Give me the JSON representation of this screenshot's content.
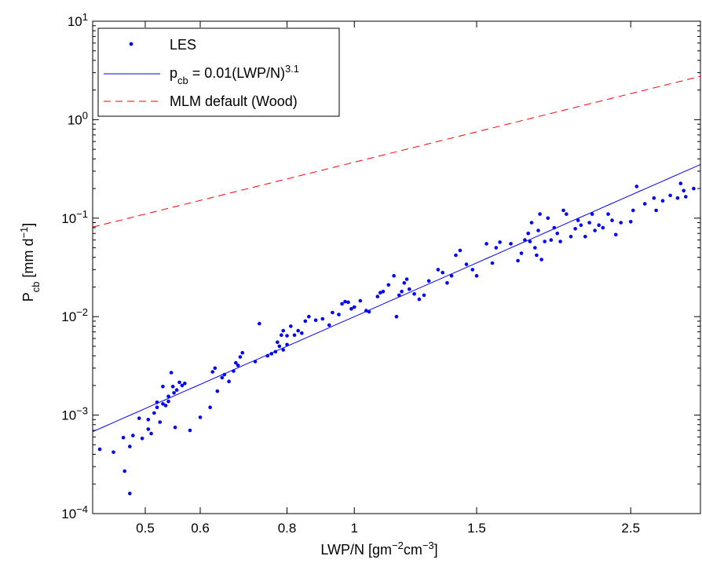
{
  "chart_data": {
    "type": "scatter",
    "xscale": "log",
    "yscale": "log",
    "xlim": [
      0.42,
      3.15
    ],
    "ylim": [
      0.0001,
      10
    ],
    "grid": false,
    "legend_position": "top-left",
    "xlabel": {
      "main": "LWP/N [gm",
      "sup1": "−2",
      "mid": "cm",
      "sup2": "−3",
      "end": "]"
    },
    "ylabel": {
      "main": "P",
      "sub": "cb",
      "mid": " [mm d",
      "sup": "−1",
      "end": "]"
    },
    "x_ticks": [
      {
        "value": 0.5,
        "label": "0.5"
      },
      {
        "value": 0.6,
        "label": "0.6"
      },
      {
        "value": 0.8,
        "label": "0.8"
      },
      {
        "value": 1,
        "label": "1"
      },
      {
        "value": 1.5,
        "label": "1.5"
      },
      {
        "value": 2.5,
        "label": "2.5"
      }
    ],
    "y_ticks": [
      {
        "value": 0.0001,
        "base": "10",
        "exp": "−4"
      },
      {
        "value": 0.001,
        "base": "10",
        "exp": "−3"
      },
      {
        "value": 0.01,
        "base": "10",
        "exp": "−2"
      },
      {
        "value": 0.1,
        "base": "10",
        "exp": "−1"
      },
      {
        "value": 1,
        "base": "10",
        "exp": "0"
      },
      {
        "value": 10,
        "base": "10",
        "exp": "1"
      }
    ],
    "series": [
      {
        "name": "LES",
        "kind": "points",
        "color": "#0000ff",
        "points": [
          [
            0.43,
            0.00045
          ],
          [
            0.45,
            0.00042
          ],
          [
            0.465,
            0.00059
          ],
          [
            0.467,
            0.00027
          ],
          [
            0.475,
            0.00016
          ],
          [
            0.475,
            0.00048
          ],
          [
            0.48,
            0.00062
          ],
          [
            0.49,
            0.00093
          ],
          [
            0.495,
            0.00058
          ],
          [
            0.505,
            0.00072
          ],
          [
            0.505,
            0.0009
          ],
          [
            0.51,
            0.00065
          ],
          [
            0.515,
            0.00105
          ],
          [
            0.52,
            0.00135
          ],
          [
            0.52,
            0.0012
          ],
          [
            0.525,
            0.00085
          ],
          [
            0.53,
            0.00195
          ],
          [
            0.53,
            0.0013
          ],
          [
            0.535,
            0.00125
          ],
          [
            0.54,
            0.00138
          ],
          [
            0.54,
            0.00155
          ],
          [
            0.545,
            0.0027
          ],
          [
            0.548,
            0.00195
          ],
          [
            0.55,
            0.00168
          ],
          [
            0.552,
            0.00075
          ],
          [
            0.555,
            0.0018
          ],
          [
            0.56,
            0.00215
          ],
          [
            0.565,
            0.002
          ],
          [
            0.57,
            0.0021
          ],
          [
            0.58,
            0.0007
          ],
          [
            0.6,
            0.00095
          ],
          [
            0.62,
            0.0012
          ],
          [
            0.625,
            0.00275
          ],
          [
            0.63,
            0.003
          ],
          [
            0.635,
            0.00175
          ],
          [
            0.645,
            0.0024
          ],
          [
            0.65,
            0.00258
          ],
          [
            0.66,
            0.0022
          ],
          [
            0.67,
            0.0028
          ],
          [
            0.675,
            0.0034
          ],
          [
            0.68,
            0.0032
          ],
          [
            0.685,
            0.0039
          ],
          [
            0.69,
            0.0043
          ],
          [
            0.72,
            0.0035
          ],
          [
            0.73,
            0.0085
          ],
          [
            0.75,
            0.004
          ],
          [
            0.76,
            0.0042
          ],
          [
            0.77,
            0.0044
          ],
          [
            0.775,
            0.0055
          ],
          [
            0.78,
            0.005
          ],
          [
            0.785,
            0.0065
          ],
          [
            0.79,
            0.0046
          ],
          [
            0.79,
            0.0072
          ],
          [
            0.8,
            0.0052
          ],
          [
            0.8,
            0.0064
          ],
          [
            0.81,
            0.008
          ],
          [
            0.82,
            0.0065
          ],
          [
            0.83,
            0.0072
          ],
          [
            0.84,
            0.0068
          ],
          [
            0.85,
            0.009
          ],
          [
            0.86,
            0.01
          ],
          [
            0.88,
            0.0092
          ],
          [
            0.9,
            0.0095
          ],
          [
            0.92,
            0.0082
          ],
          [
            0.93,
            0.011
          ],
          [
            0.95,
            0.0105
          ],
          [
            0.96,
            0.0135
          ],
          [
            0.97,
            0.0142
          ],
          [
            0.98,
            0.014
          ],
          [
            0.99,
            0.012
          ],
          [
            1.0,
            0.0125
          ],
          [
            1.02,
            0.0145
          ],
          [
            1.04,
            0.0115
          ],
          [
            1.05,
            0.0112
          ],
          [
            1.08,
            0.016
          ],
          [
            1.09,
            0.0175
          ],
          [
            1.1,
            0.018
          ],
          [
            1.12,
            0.021
          ],
          [
            1.14,
            0.026
          ],
          [
            1.15,
            0.01
          ],
          [
            1.16,
            0.0165
          ],
          [
            1.17,
            0.018
          ],
          [
            1.18,
            0.022
          ],
          [
            1.19,
            0.024
          ],
          [
            1.2,
            0.019
          ],
          [
            1.22,
            0.017
          ],
          [
            1.24,
            0.015
          ],
          [
            1.26,
            0.0165
          ],
          [
            1.28,
            0.023
          ],
          [
            1.32,
            0.03
          ],
          [
            1.34,
            0.028
          ],
          [
            1.36,
            0.022
          ],
          [
            1.38,
            0.026
          ],
          [
            1.4,
            0.042
          ],
          [
            1.42,
            0.047
          ],
          [
            1.45,
            0.034
          ],
          [
            1.48,
            0.03
          ],
          [
            1.5,
            0.026
          ],
          [
            1.55,
            0.055
          ],
          [
            1.58,
            0.035
          ],
          [
            1.6,
            0.05
          ],
          [
            1.62,
            0.057
          ],
          [
            1.68,
            0.055
          ],
          [
            1.72,
            0.037
          ],
          [
            1.74,
            0.044
          ],
          [
            1.76,
            0.06
          ],
          [
            1.78,
            0.07
          ],
          [
            1.79,
            0.058
          ],
          [
            1.8,
            0.09
          ],
          [
            1.82,
            0.05
          ],
          [
            1.83,
            0.042
          ],
          [
            1.84,
            0.075
          ],
          [
            1.85,
            0.11
          ],
          [
            1.86,
            0.038
          ],
          [
            1.88,
            0.058
          ],
          [
            1.9,
            0.1
          ],
          [
            1.92,
            0.06
          ],
          [
            1.94,
            0.08
          ],
          [
            1.96,
            0.07
          ],
          [
            1.98,
            0.058
          ],
          [
            2.0,
            0.12
          ],
          [
            2.02,
            0.11
          ],
          [
            2.05,
            0.065
          ],
          [
            2.08,
            0.078
          ],
          [
            2.1,
            0.095
          ],
          [
            2.12,
            0.085
          ],
          [
            2.15,
            0.065
          ],
          [
            2.18,
            0.09
          ],
          [
            2.2,
            0.11
          ],
          [
            2.22,
            0.075
          ],
          [
            2.25,
            0.085
          ],
          [
            2.28,
            0.08
          ],
          [
            2.32,
            0.11
          ],
          [
            2.35,
            0.095
          ],
          [
            2.38,
            0.068
          ],
          [
            2.42,
            0.09
          ],
          [
            2.5,
            0.092
          ],
          [
            2.52,
            0.12
          ],
          [
            2.55,
            0.21
          ],
          [
            2.62,
            0.14
          ],
          [
            2.7,
            0.16
          ],
          [
            2.72,
            0.12
          ],
          [
            2.78,
            0.15
          ],
          [
            2.85,
            0.17
          ],
          [
            2.92,
            0.16
          ],
          [
            2.95,
            0.225
          ],
          [
            2.98,
            0.19
          ],
          [
            3.0,
            0.165
          ],
          [
            3.08,
            0.2
          ]
        ]
      },
      {
        "name": "p_cb = 0.01(LWP/N)^3.1",
        "legend": {
          "p": "p",
          "sub": "cb",
          "eq": " = 0.01(LWP/N)",
          "sup": "3.1"
        },
        "kind": "power-law",
        "coefficient": 0.01,
        "exponent": 3.1,
        "color": "#0000ff",
        "dash": "solid"
      },
      {
        "name": "MLM default (Wood)",
        "kind": "power-law",
        "coefficient": 0.37,
        "exponent": 1.75,
        "color": "#ff0000",
        "dash": "dashed"
      }
    ]
  }
}
